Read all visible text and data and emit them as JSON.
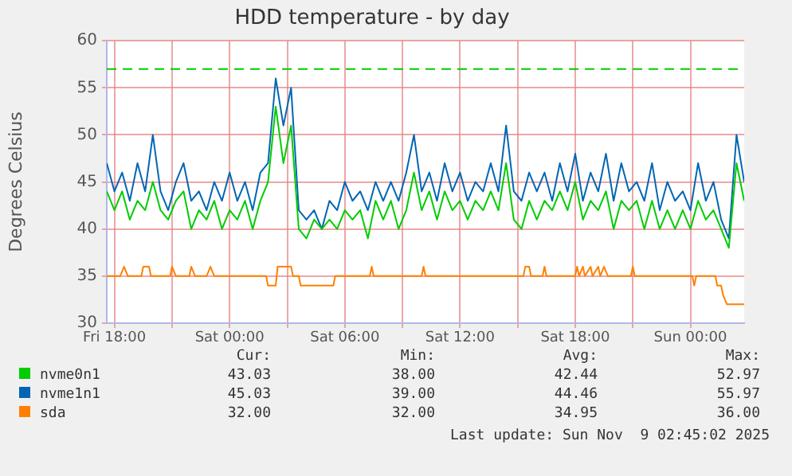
{
  "chart_data": {
    "type": "line",
    "title": "HDD temperature - by day",
    "ylabel": "Degrees Celsius",
    "x": [
      "2025-11-07T17:36",
      "2025-11-07T18:00",
      "2025-11-07T18:24",
      "2025-11-07T18:48",
      "2025-11-07T19:12",
      "2025-11-07T19:36",
      "2025-11-07T20:00",
      "2025-11-07T20:24",
      "2025-11-07T20:48",
      "2025-11-07T21:12",
      "2025-11-07T21:36",
      "2025-11-07T22:00",
      "2025-11-07T22:24",
      "2025-11-07T22:48",
      "2025-11-07T23:12",
      "2025-11-07T23:36",
      "2025-11-08T00:00",
      "2025-11-08T00:24",
      "2025-11-08T00:48",
      "2025-11-08T01:12",
      "2025-11-08T01:36",
      "2025-11-08T02:00",
      "2025-11-08T02:24",
      "2025-11-08T02:48",
      "2025-11-08T03:12",
      "2025-11-08T03:36",
      "2025-11-08T04:00",
      "2025-11-08T04:24",
      "2025-11-08T04:48",
      "2025-11-08T05:12",
      "2025-11-08T05:36",
      "2025-11-08T06:00",
      "2025-11-08T06:24",
      "2025-11-08T06:48",
      "2025-11-08T07:12",
      "2025-11-08T07:36",
      "2025-11-08T08:00",
      "2025-11-08T08:24",
      "2025-11-08T08:48",
      "2025-11-08T09:12",
      "2025-11-08T09:36",
      "2025-11-08T10:00",
      "2025-11-08T10:24",
      "2025-11-08T10:48",
      "2025-11-08T11:12",
      "2025-11-08T11:36",
      "2025-11-08T12:00",
      "2025-11-08T12:24",
      "2025-11-08T12:48",
      "2025-11-08T13:12",
      "2025-11-08T13:36",
      "2025-11-08T14:00",
      "2025-11-08T14:24",
      "2025-11-08T14:48",
      "2025-11-08T15:12",
      "2025-11-08T15:36",
      "2025-11-08T16:00",
      "2025-11-08T16:24",
      "2025-11-08T16:48",
      "2025-11-08T17:12",
      "2025-11-08T17:36",
      "2025-11-08T18:00",
      "2025-11-08T18:24",
      "2025-11-08T18:48",
      "2025-11-08T19:12",
      "2025-11-08T19:36",
      "2025-11-08T20:00",
      "2025-11-08T20:24",
      "2025-11-08T20:48",
      "2025-11-08T21:12",
      "2025-11-08T21:36",
      "2025-11-08T22:00",
      "2025-11-08T22:24",
      "2025-11-08T22:48",
      "2025-11-08T23:12",
      "2025-11-08T23:36",
      "2025-11-09T00:00",
      "2025-11-09T00:24",
      "2025-11-09T00:48",
      "2025-11-09T01:12",
      "2025-11-09T01:36",
      "2025-11-09T02:00",
      "2025-11-09T02:24",
      "2025-11-09T02:48"
    ],
    "series": [
      {
        "name": "nvme0n1",
        "color": "#00cc00",
        "values": [
          44,
          42,
          44,
          41,
          43,
          42,
          45,
          42,
          41,
          43,
          44,
          40,
          42,
          41,
          43,
          40,
          42,
          41,
          43,
          40,
          43,
          45,
          53,
          47,
          51,
          40,
          39,
          41,
          40,
          41,
          40,
          42,
          41,
          42,
          39,
          43,
          41,
          43,
          40,
          42,
          46,
          42,
          44,
          41,
          44,
          42,
          43,
          41,
          43,
          42,
          44,
          42,
          47,
          41,
          40,
          43,
          41,
          43,
          42,
          44,
          42,
          45,
          41,
          43,
          42,
          44,
          40,
          43,
          42,
          43,
          40,
          43,
          40,
          42,
          40,
          42,
          40,
          43,
          41,
          42,
          40,
          38,
          47,
          43
        ]
      },
      {
        "name": "nvme1n1",
        "color": "#0066b3",
        "values": [
          47,
          44,
          46,
          43,
          47,
          44,
          50,
          44,
          42,
          45,
          47,
          43,
          44,
          42,
          45,
          43,
          46,
          43,
          45,
          42,
          46,
          47,
          56,
          51,
          55,
          42,
          41,
          42,
          40,
          43,
          42,
          45,
          43,
          44,
          42,
          45,
          43,
          45,
          43,
          46,
          50,
          44,
          46,
          43,
          47,
          44,
          46,
          43,
          45,
          44,
          47,
          44,
          51,
          44,
          43,
          46,
          44,
          46,
          43,
          47,
          44,
          48,
          43,
          46,
          44,
          48,
          43,
          47,
          44,
          45,
          43,
          47,
          42,
          45,
          43,
          44,
          42,
          47,
          43,
          45,
          41,
          39,
          50,
          45
        ]
      },
      {
        "name": "sda",
        "color": "#ff8000",
        "x": [
          "2025-11-07T17:36",
          "2025-11-07T18:18",
          "2025-11-07T18:30",
          "2025-11-07T18:42",
          "2025-11-07T19:24",
          "2025-11-07T19:30",
          "2025-11-07T19:48",
          "2025-11-07T19:54",
          "2025-11-07T20:54",
          "2025-11-07T21:00",
          "2025-11-07T21:12",
          "2025-11-07T21:54",
          "2025-11-07T22:00",
          "2025-11-07T22:12",
          "2025-11-07T22:48",
          "2025-11-07T23:00",
          "2025-11-07T23:12",
          "2025-11-08T01:54",
          "2025-11-08T02:00",
          "2025-11-08T02:24",
          "2025-11-08T02:30",
          "2025-11-08T03:12",
          "2025-11-08T03:18",
          "2025-11-08T03:36",
          "2025-11-08T03:42",
          "2025-11-08T05:24",
          "2025-11-08T05:30",
          "2025-11-08T07:18",
          "2025-11-08T07:24",
          "2025-11-08T07:30",
          "2025-11-08T10:00",
          "2025-11-08T10:06",
          "2025-11-08T10:12",
          "2025-11-08T15:18",
          "2025-11-08T15:24",
          "2025-11-08T15:36",
          "2025-11-08T15:42",
          "2025-11-08T16:18",
          "2025-11-08T16:24",
          "2025-11-08T16:30",
          "2025-11-08T18:00",
          "2025-11-08T18:06",
          "2025-11-08T18:12",
          "2025-11-08T18:24",
          "2025-11-08T18:30",
          "2025-11-08T18:48",
          "2025-11-08T18:54",
          "2025-11-08T19:12",
          "2025-11-08T19:18",
          "2025-11-08T19:30",
          "2025-11-08T19:42",
          "2025-11-08T20:54",
          "2025-11-08T21:00",
          "2025-11-08T21:06",
          "2025-11-09T00:06",
          "2025-11-09T00:12",
          "2025-11-09T00:18",
          "2025-11-09T01:18",
          "2025-11-09T01:24",
          "2025-11-09T01:36",
          "2025-11-09T01:42",
          "2025-11-09T01:54",
          "2025-11-09T02:48"
        ],
        "values": [
          35,
          35,
          36,
          35,
          35,
          36,
          36,
          35,
          35,
          36,
          35,
          35,
          36,
          35,
          35,
          36,
          35,
          35,
          34,
          34,
          36,
          36,
          35,
          35,
          34,
          34,
          35,
          35,
          36,
          35,
          35,
          36,
          35,
          35,
          36,
          36,
          35,
          35,
          36,
          35,
          35,
          36,
          35,
          36,
          35,
          36,
          35,
          36,
          35,
          36,
          35,
          35,
          36,
          35,
          35,
          34,
          35,
          35,
          34,
          34,
          33,
          32,
          32
        ]
      }
    ],
    "xlim": [
      "2025-11-07T17:36",
      "2025-11-09T02:48"
    ],
    "xticks": [
      {
        "value": "2025-11-07T18:00",
        "label": "Fri 18:00"
      },
      {
        "value": "2025-11-07T21:00",
        "label": null
      },
      {
        "value": "2025-11-08T00:00",
        "label": "Sat 00:00"
      },
      {
        "value": "2025-11-08T03:00",
        "label": null
      },
      {
        "value": "2025-11-08T06:00",
        "label": "Sat 06:00"
      },
      {
        "value": "2025-11-08T09:00",
        "label": null
      },
      {
        "value": "2025-11-08T12:00",
        "label": "Sat 12:00"
      },
      {
        "value": "2025-11-08T15:00",
        "label": null
      },
      {
        "value": "2025-11-08T18:00",
        "label": "Sat 18:00"
      },
      {
        "value": "2025-11-08T21:00",
        "label": null
      },
      {
        "value": "2025-11-09T00:00",
        "label": "Sun 00:00"
      }
    ],
    "ylim": [
      30,
      60
    ],
    "yticks": [
      30,
      35,
      40,
      45,
      50,
      55,
      60
    ],
    "grid": true,
    "legend": "bottom",
    "ref_lines": [
      {
        "axis": "y",
        "value": 57,
        "color": "#00cc00",
        "line_style": "dashed"
      }
    ],
    "annotations": [
      "Cur:",
      "Min:",
      "Avg:",
      "Max:",
      "43.03",
      "38.00",
      "42.44",
      "52.97",
      "45.03",
      "39.00",
      "44.46",
      "55.97",
      "32.00",
      "32.00",
      "34.95",
      "36.00",
      "Last update: Sun Nov  9 02:45:02 2025"
    ]
  }
}
